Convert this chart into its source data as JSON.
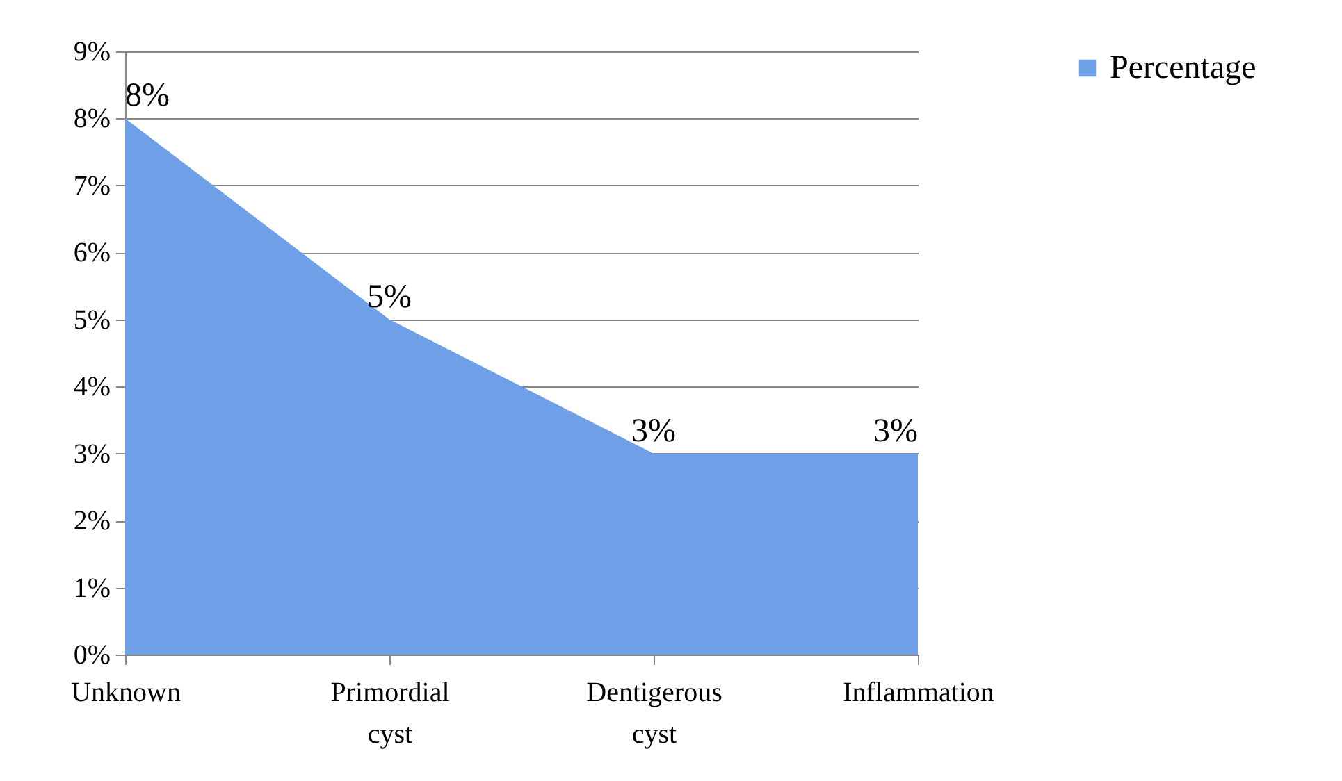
{
  "chart_data": {
    "type": "area",
    "categories": [
      "Unknown",
      "Primordial cyst",
      "Dentigerous cyst",
      "Inflammation"
    ],
    "series": [
      {
        "name": "Percentage",
        "color": "#6f9fe6",
        "values": [
          8,
          5,
          3,
          3
        ],
        "value_labels": [
          "8%",
          "5%",
          "3%",
          "3%"
        ]
      }
    ],
    "ylim": [
      0,
      9
    ],
    "yticks": [
      {
        "value": 0,
        "label": "0%"
      },
      {
        "value": 1,
        "label": "1%"
      },
      {
        "value": 2,
        "label": "2%"
      },
      {
        "value": 3,
        "label": "3%"
      },
      {
        "value": 4,
        "label": "4%"
      },
      {
        "value": 5,
        "label": "5%"
      },
      {
        "value": 6,
        "label": "6%"
      },
      {
        "value": 7,
        "label": "7%"
      },
      {
        "value": 8,
        "label": "8%"
      },
      {
        "value": 9,
        "label": "9%"
      }
    ],
    "grid": "y",
    "legend": "right"
  }
}
